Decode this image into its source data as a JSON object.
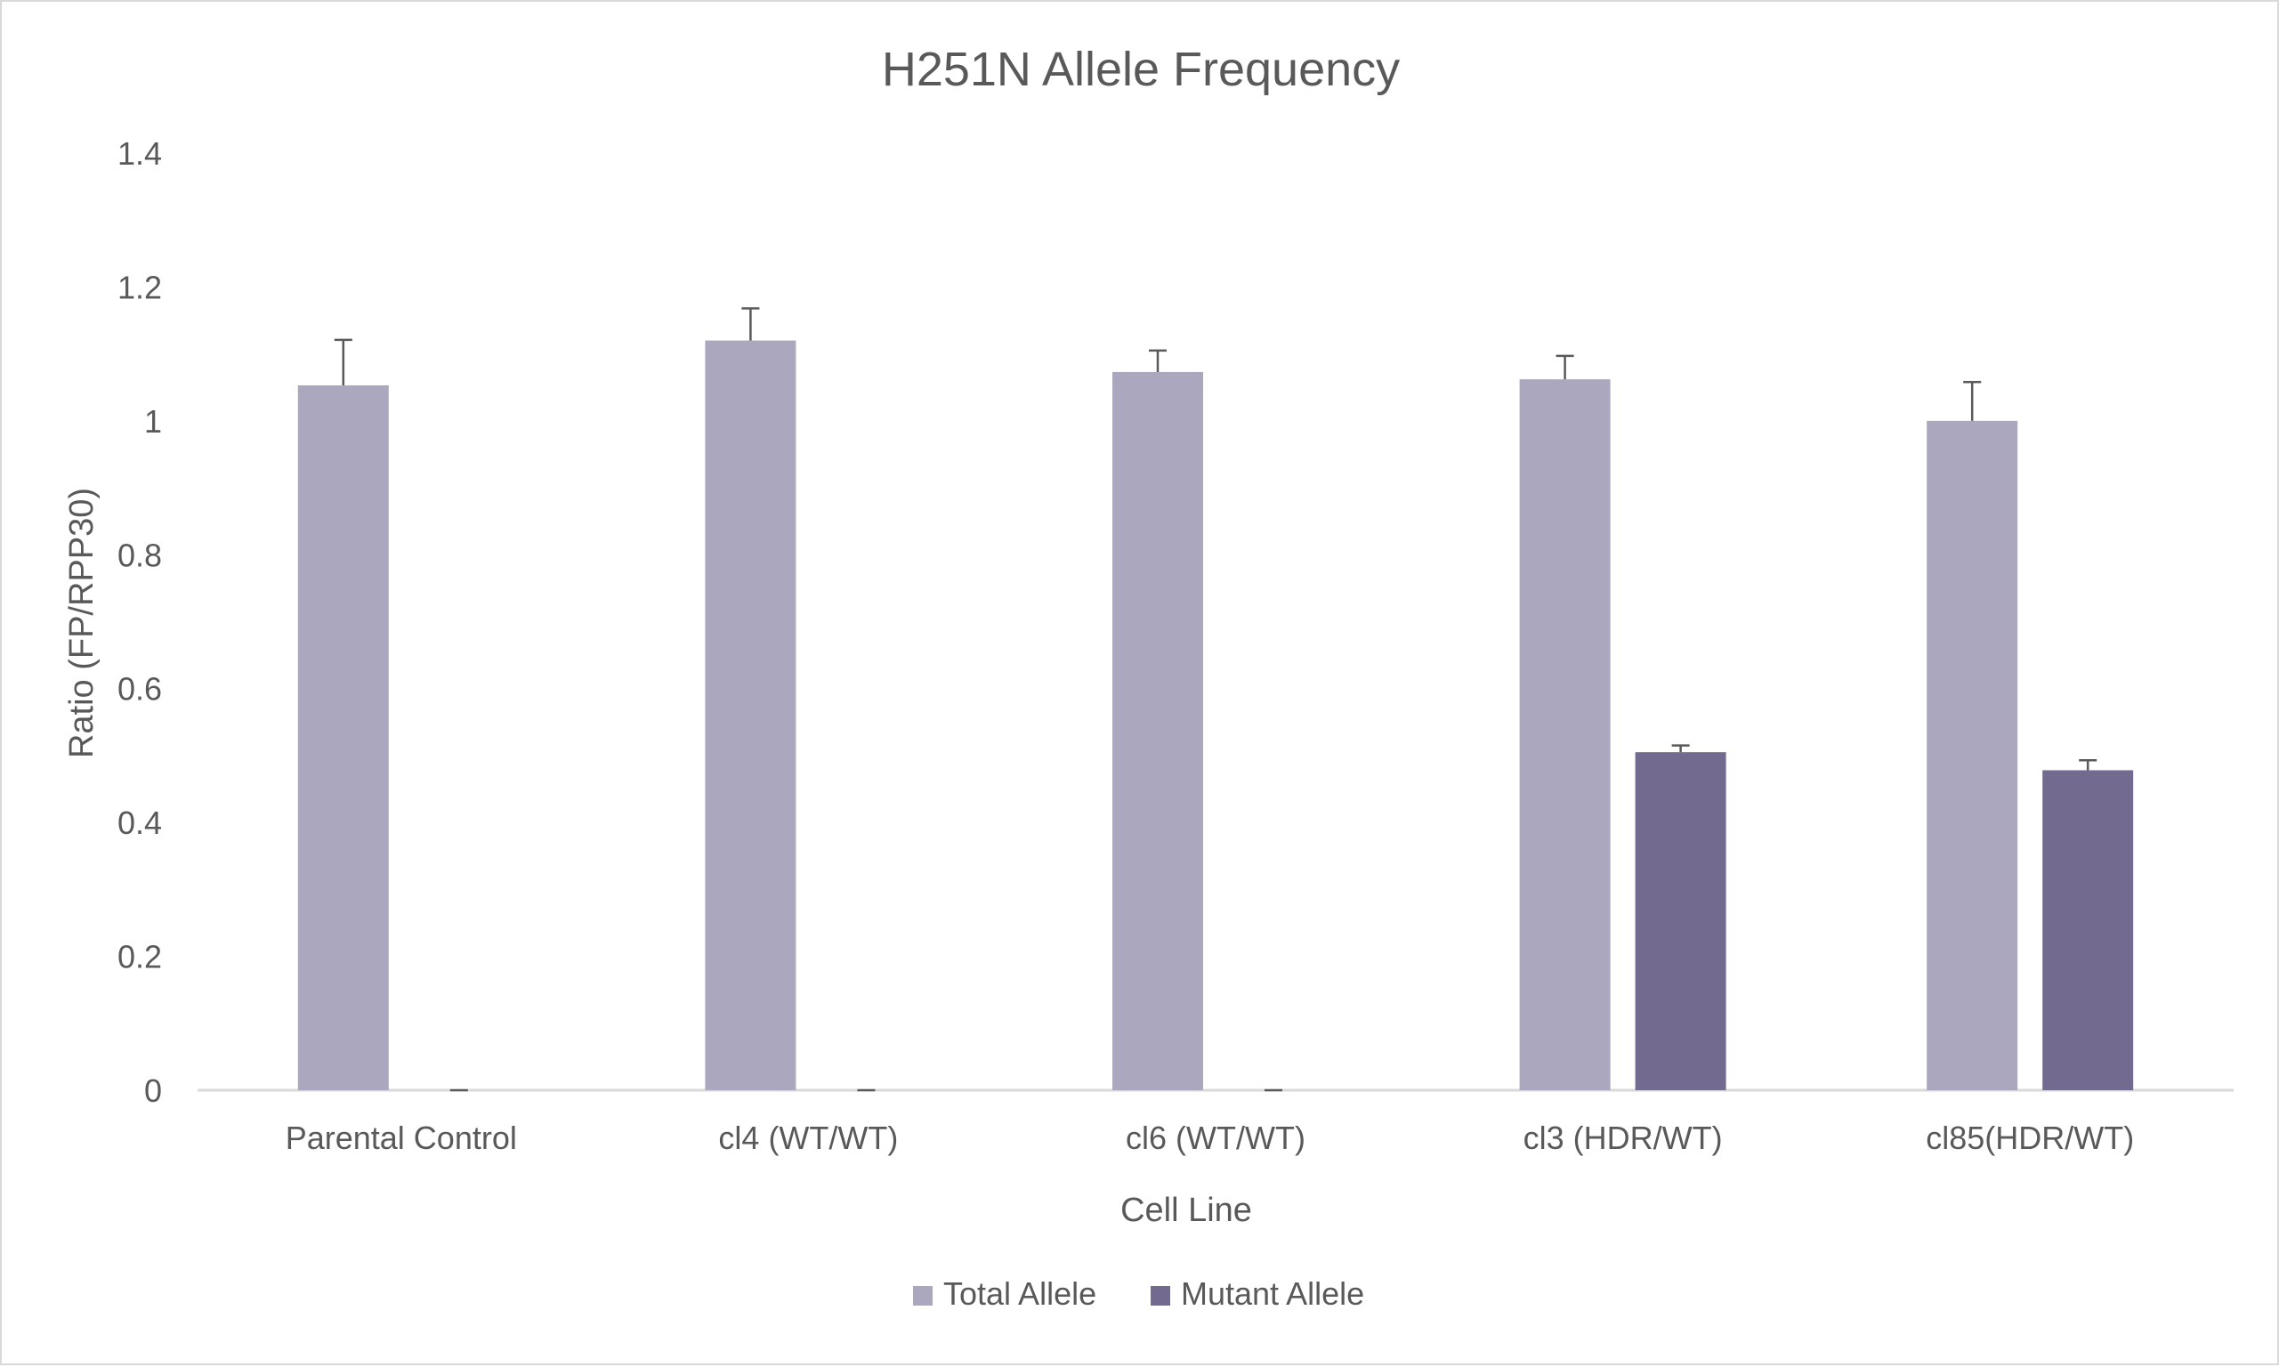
{
  "chart_data": {
    "type": "bar",
    "title": "H251N Allele Frequency",
    "xlabel": "Cell Line",
    "ylabel": "Ratio (FP/RPP30)",
    "categories": [
      "Parental Control",
      "cl4 (WT/WT)",
      "cl6 (WT/WT)",
      "cl3 (HDR/WT)",
      "cl85(HDR/WT)"
    ],
    "series": [
      {
        "name": "Total Allele",
        "color": "#aaa7bf",
        "values": [
          1.053,
          1.12,
          1.073,
          1.062,
          1.0
        ],
        "error_plus": [
          0.068,
          0.048,
          0.032,
          0.035,
          0.058
        ]
      },
      {
        "name": "Mutant Allele",
        "color": "#726b8f",
        "values": [
          0.0,
          0.0,
          0.0,
          0.505,
          0.478
        ],
        "error_plus": [
          0.0,
          0.0,
          0.0,
          0.01,
          0.015
        ]
      }
    ],
    "ylim": [
      0,
      1.4
    ],
    "yticks": [
      "0",
      "0.2",
      "0.4",
      "0.6",
      "0.8",
      "1",
      "1.2",
      "1.4"
    ],
    "grid": false,
    "legend": "bottom",
    "colors": {
      "text": "#595959",
      "axis": "#d9d9d9",
      "error_bar": "#595959"
    }
  }
}
